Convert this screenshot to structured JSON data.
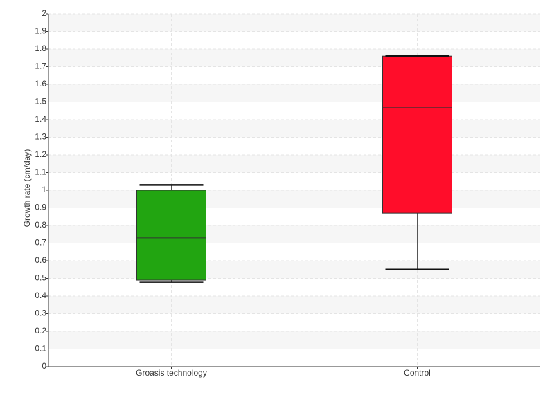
{
  "chart_data": {
    "type": "box",
    "y_label": "Growth rate (cm/day)",
    "categories": [
      "Groasis technology",
      "Control"
    ],
    "min": [
      0.48,
      0.55
    ],
    "q1": [
      0.49,
      0.87
    ],
    "median": [
      0.73,
      1.47
    ],
    "q3": [
      1.0,
      1.76
    ],
    "max": [
      1.03,
      1.76
    ],
    "colors": [
      "#22a511",
      "#ff0d2a"
    ],
    "ylim": [
      0,
      2
    ],
    "yticks": [
      0,
      0.1,
      0.2,
      0.3,
      0.4,
      0.5,
      0.6,
      0.7,
      0.8,
      0.9,
      1,
      1.1,
      1.2,
      1.3,
      1.4,
      1.5,
      1.6,
      1.7,
      1.8,
      1.9,
      2
    ],
    "grid": true
  }
}
